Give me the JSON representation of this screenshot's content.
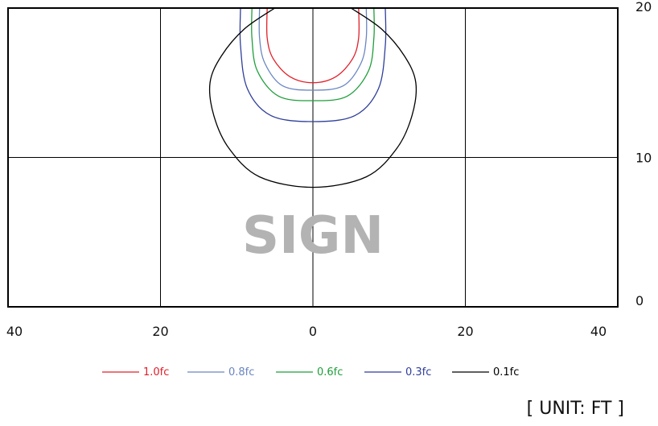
{
  "chart_data": {
    "type": "line",
    "title": "",
    "xlabel": "",
    "ylabel": "",
    "xlim": [
      -40,
      40
    ],
    "ylim": [
      0,
      20
    ],
    "x_ticks": [
      "40",
      "20",
      "0",
      "20",
      "40"
    ],
    "y_ticks": [
      "20",
      "10",
      "0"
    ],
    "grid": true,
    "legend_position": "bottom",
    "sign_label": "SIGN",
    "unit_label": "[ UNIT: FT ]",
    "series": [
      {
        "name": "1.0fc",
        "color": "#e0202a",
        "x": [
          -6.0,
          -6.0,
          -5.2,
          -3.0,
          0.0,
          3.0,
          5.2,
          6.0,
          6.0
        ],
        "y": [
          20.0,
          18.0,
          16.6,
          15.4,
          15.0,
          15.4,
          16.6,
          18.0,
          20.0
        ]
      },
      {
        "name": "0.8fc",
        "color": "#6a86c0",
        "x": [
          -7.0,
          -7.0,
          -6.3,
          -4.0,
          0.0,
          4.0,
          6.3,
          7.0,
          7.0
        ],
        "y": [
          20.0,
          18.0,
          16.3,
          14.8,
          14.5,
          14.8,
          16.3,
          18.0,
          20.0
        ]
      },
      {
        "name": "0.6fc",
        "color": "#1f9e3a",
        "x": [
          -8.0,
          -8.0,
          -7.3,
          -4.5,
          0.0,
          4.5,
          7.3,
          8.0,
          8.0
        ],
        "y": [
          20.0,
          18.0,
          15.8,
          14.1,
          13.8,
          14.1,
          15.8,
          18.0,
          20.0
        ]
      },
      {
        "name": "0.3fc",
        "color": "#2f3f9a",
        "x": [
          -9.5,
          -9.5,
          -8.6,
          -5.5,
          0.0,
          5.5,
          8.6,
          9.5,
          9.5
        ],
        "y": [
          20.0,
          17.5,
          14.6,
          12.8,
          12.4,
          12.8,
          14.6,
          17.5,
          20.0
        ]
      },
      {
        "name": "0.1fc",
        "color": "#000000",
        "x": [
          -5.0,
          -9.0,
          -12.0,
          -13.5,
          -13.0,
          -11.0,
          -7.0,
          0.0,
          7.0,
          11.0,
          13.0,
          13.5,
          12.0,
          9.0,
          5.0
        ],
        "y": [
          20.0,
          18.6,
          16.8,
          15.0,
          12.8,
          10.6,
          8.7,
          8.0,
          8.7,
          10.6,
          12.8,
          15.0,
          16.8,
          18.6,
          20.0
        ]
      }
    ]
  }
}
